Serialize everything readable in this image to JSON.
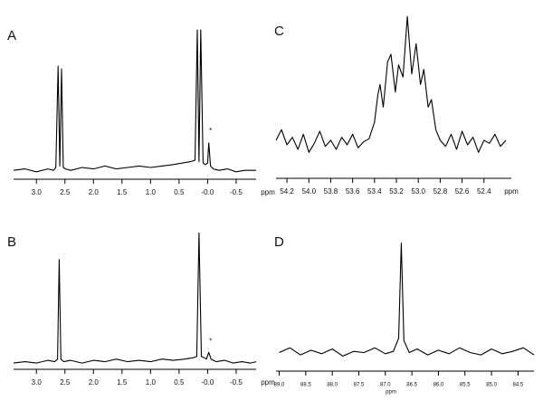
{
  "chart_data": [
    {
      "type": "line",
      "panel_label": "A",
      "xlabel": "ppm",
      "color": "#000000",
      "xlim": [
        3.4,
        -0.85
      ],
      "ylim": [
        0,
        105
      ],
      "xticks": [
        {
          "value": 3,
          "label": "3.0"
        },
        2.5,
        {
          "value": 2,
          "label": "2.0"
        },
        1.5,
        {
          "value": 1,
          "label": "1.0"
        },
        0.5,
        {
          "value": 0,
          "label": "-0.0"
        },
        -0.5
      ],
      "x": [
        3.4,
        3.2,
        3.0,
        2.8,
        2.7,
        2.66,
        2.62,
        2.59,
        2.56,
        2.53,
        2.49,
        2.4,
        2.2,
        2.0,
        1.8,
        1.6,
        1.4,
        1.2,
        1.0,
        0.8,
        0.6,
        0.45,
        0.3,
        0.22,
        0.18,
        0.15,
        0.12,
        0.08,
        0.04,
        0.0,
        -0.02,
        -0.05,
        -0.1,
        -0.2,
        -0.35,
        -0.5,
        -0.65,
        -0.85
      ],
      "values": [
        3,
        4,
        2,
        4,
        3,
        5,
        75,
        6,
        73,
        5,
        4,
        3,
        5,
        4,
        6,
        4,
        5,
        6,
        5,
        6,
        7,
        8,
        9,
        10,
        100,
        9,
        100,
        8,
        7,
        8,
        22,
        6,
        4,
        3,
        4,
        2,
        3,
        3
      ],
      "annotations": [
        {
          "text": "*",
          "x": -0.02,
          "y": 30
        }
      ]
    },
    {
      "type": "line",
      "panel_label": "B",
      "xlabel": "ppm",
      "color": "#000000",
      "xlim": [
        3.4,
        -0.85
      ],
      "ylim": [
        0,
        105
      ],
      "xticks": [
        {
          "value": 3,
          "label": "3.0"
        },
        2.5,
        {
          "value": 2,
          "label": "2.0"
        },
        1.5,
        {
          "value": 1,
          "label": "1.0"
        },
        0.5,
        {
          "value": 0,
          "label": "-0.0"
        },
        -0.5
      ],
      "x": [
        3.4,
        3.2,
        3.0,
        2.8,
        2.68,
        2.63,
        2.6,
        2.57,
        2.52,
        2.4,
        2.2,
        2.0,
        1.8,
        1.6,
        1.4,
        1.2,
        1.0,
        0.8,
        0.6,
        0.4,
        0.25,
        0.19,
        0.15,
        0.11,
        0.06,
        0.02,
        -0.02,
        -0.06,
        -0.15,
        -0.3,
        -0.45,
        -0.6,
        -0.75,
        -0.85
      ],
      "values": [
        2,
        3,
        2,
        4,
        3,
        5,
        80,
        5,
        3,
        4,
        2,
        4,
        3,
        5,
        3,
        4,
        3,
        5,
        4,
        5,
        6,
        7,
        100,
        7,
        6,
        5,
        10,
        5,
        3,
        4,
        2,
        3,
        2,
        3
      ],
      "annotations": [
        {
          "text": "*",
          "x": -0.02,
          "y": 18
        }
      ]
    },
    {
      "type": "line",
      "panel_label": "C",
      "xlabel": "ppm",
      "color": "#000000",
      "xlim": [
        54.3,
        52.15
      ],
      "ylim": [
        0,
        105
      ],
      "xticks": [
        54.2,
        {
          "value": 54,
          "label": "54.0"
        },
        53.8,
        53.6,
        53.4,
        53.2,
        {
          "value": 53,
          "label": "53.0"
        },
        52.8,
        52.6,
        52.4
      ],
      "x": [
        54.3,
        54.25,
        54.2,
        54.15,
        54.1,
        54.05,
        54.0,
        53.95,
        53.9,
        53.85,
        53.8,
        53.75,
        53.7,
        53.65,
        53.6,
        53.55,
        53.5,
        53.45,
        53.4,
        53.37,
        53.35,
        53.32,
        53.28,
        53.25,
        53.21,
        53.18,
        53.14,
        53.1,
        53.06,
        53.02,
        52.98,
        52.95,
        52.91,
        52.88,
        52.84,
        52.8,
        52.75,
        52.7,
        52.65,
        52.6,
        52.55,
        52.5,
        52.45,
        52.4,
        52.35,
        52.3,
        52.25,
        52.2
      ],
      "values": [
        18,
        25,
        15,
        20,
        12,
        22,
        10,
        16,
        24,
        14,
        18,
        12,
        20,
        15,
        22,
        13,
        17,
        19,
        30,
        48,
        55,
        40,
        70,
        75,
        50,
        68,
        60,
        100,
        62,
        82,
        55,
        65,
        40,
        45,
        25,
        18,
        14,
        22,
        12,
        24,
        15,
        20,
        10,
        18,
        16,
        22,
        14,
        18
      ]
    },
    {
      "type": "line",
      "panel_label": "D",
      "xlabel": "ppm",
      "color": "#000000",
      "xlim": [
        89.06,
        84.2
      ],
      "ylim": [
        0,
        105
      ],
      "xticks": [
        {
          "value": 89,
          "label": "89.0"
        },
        88.5,
        {
          "value": 88,
          "label": "88.0"
        },
        87.5,
        {
          "value": 87,
          "label": "87.0"
        },
        86.5,
        {
          "value": 86,
          "label": "86.0"
        },
        85.5,
        {
          "value": 85,
          "label": "85.0"
        },
        84.5
      ],
      "x": [
        89.0,
        88.8,
        88.6,
        88.4,
        88.2,
        88.0,
        87.8,
        87.6,
        87.4,
        87.2,
        87.0,
        86.85,
        86.75,
        86.7,
        86.65,
        86.55,
        86.4,
        86.2,
        86.0,
        85.8,
        85.6,
        85.4,
        85.2,
        85.0,
        84.8,
        84.6,
        84.4,
        84.2
      ],
      "values": [
        8,
        12,
        6,
        10,
        7,
        11,
        5,
        9,
        8,
        12,
        7,
        9,
        20,
        100,
        18,
        8,
        11,
        6,
        10,
        7,
        12,
        8,
        6,
        11,
        7,
        9,
        12,
        6
      ]
    }
  ]
}
